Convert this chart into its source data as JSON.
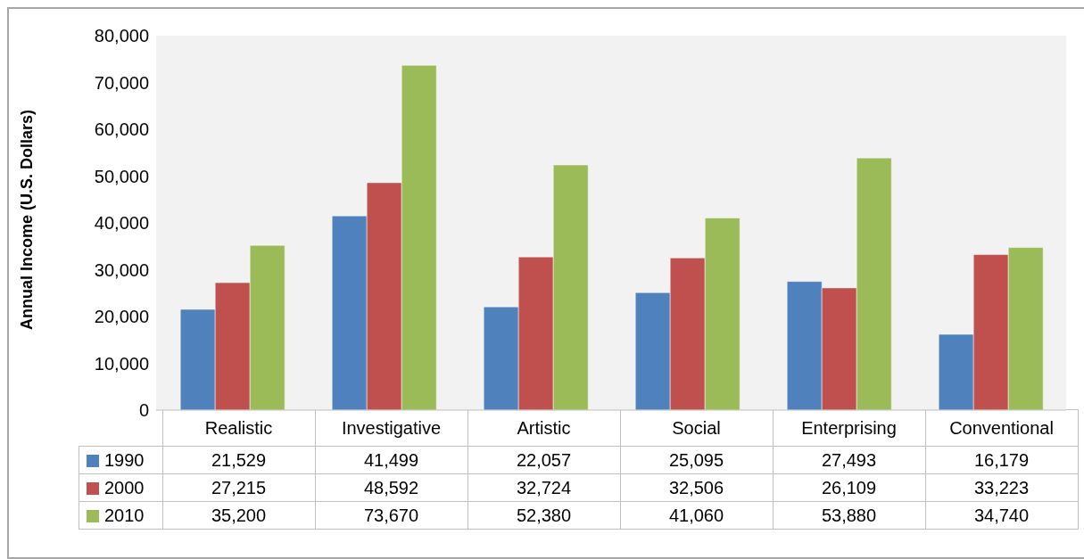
{
  "chart_data": {
    "type": "bar",
    "ylabel": "Annual Income (U.S. Dollars)",
    "categories": [
      "Realistic",
      "Investigative",
      "Artistic",
      "Social",
      "Enterprising",
      "Conventional"
    ],
    "series": [
      {
        "name": "1990",
        "color": "#4f81bd",
        "values": [
          21529,
          41499,
          22057,
          25095,
          27493,
          16179
        ],
        "value_labels": [
          "21,529",
          "41,499",
          "22,057",
          "25,095",
          "27,493",
          "16,179"
        ]
      },
      {
        "name": "2000",
        "color": "#c0504d",
        "values": [
          27215,
          48592,
          32724,
          32506,
          26109,
          33223
        ],
        "value_labels": [
          "27,215",
          "48,592",
          "32,724",
          "32,506",
          "26,109",
          "33,223"
        ]
      },
      {
        "name": "2010",
        "color": "#9bbb59",
        "values": [
          35200,
          73670,
          52380,
          41060,
          53880,
          34740
        ],
        "value_labels": [
          "35,200",
          "73,670",
          "52,380",
          "41,060",
          "53,880",
          "34,740"
        ]
      }
    ],
    "ylim": [
      0,
      80000
    ],
    "yticks": [
      0,
      {
        "value": 10000,
        "label": "10,000"
      },
      {
        "value": 20000,
        "label": "20,000"
      },
      {
        "value": 30000,
        "label": "30,000"
      },
      {
        "value": 40000,
        "label": "40,000"
      },
      {
        "value": 50000,
        "label": "50,000"
      },
      {
        "value": 60000,
        "label": "60,000"
      },
      {
        "value": 70000,
        "label": "70,000"
      },
      {
        "value": 80000,
        "label": "80,000"
      }
    ],
    "grid": false,
    "legend": "bottom"
  }
}
